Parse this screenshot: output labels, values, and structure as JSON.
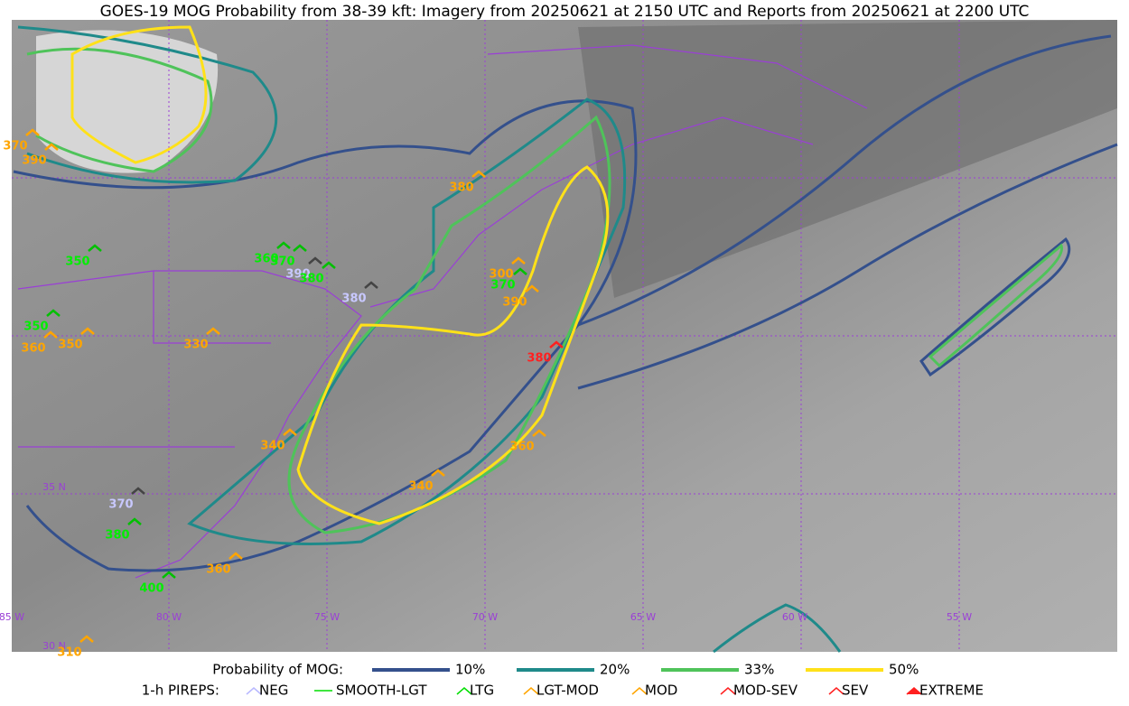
{
  "title": "GOES-19 MOG Probability from 38-39 kft: Imagery from 20250621 at 2150 UTC and Reports from 20250621 at 2200 UTC",
  "map": {
    "lon_labels": [
      "85 W",
      "80 W",
      "75 W",
      "70 W",
      "65 W",
      "60 W",
      "55 W"
    ],
    "lat_labels": [
      "35 N",
      "30 N"
    ]
  },
  "pireps": [
    "370",
    "390",
    "380",
    "350",
    "360",
    "370",
    "390",
    "380",
    "380",
    "300",
    "370",
    "390",
    "380",
    "350",
    "360",
    "350",
    "330",
    "340",
    "360",
    "340",
    "370",
    "380",
    "360",
    "400",
    "310"
  ],
  "legend": {
    "probability_title": "Probability of MOG:",
    "probability_levels": [
      "10%",
      "20%",
      "33%",
      "50%"
    ],
    "pirep_title": "1-h PIREPS:",
    "pirep_types": [
      "NEG",
      "SMOOTH-LGT",
      "LTG",
      "LGT-MOD",
      "MOD",
      "MOD-SEV",
      "SEV",
      "EXTREME"
    ]
  }
}
